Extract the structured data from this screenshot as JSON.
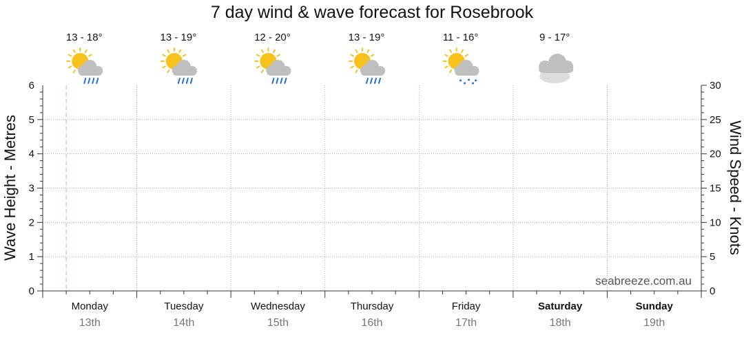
{
  "chart_data": {
    "type": "line",
    "title": "7 day wind & wave forecast for Rosebrook",
    "ylabel": "Wave Height - Metres",
    "y2label": "Wind Speed - Knots",
    "ylim": [
      0,
      6
    ],
    "y2lim": [
      0,
      30
    ],
    "yticks": [
      "0",
      "1",
      "2",
      "3",
      "4",
      "5",
      "6"
    ],
    "y2ticks": [
      "0",
      "5",
      "10",
      "15",
      "20",
      "25",
      "30"
    ],
    "grid": true,
    "current_time_day_fraction": 0.25,
    "days": [
      {
        "day": "Monday",
        "date": "13th",
        "temp": "13 - 18°",
        "icon": "sun-cloud-rain-icon",
        "bold": false
      },
      {
        "day": "Tuesday",
        "date": "14th",
        "temp": "13 - 19°",
        "icon": "sun-cloud-rain-icon",
        "bold": false
      },
      {
        "day": "Wednesday",
        "date": "15th",
        "temp": "12 - 20°",
        "icon": "sun-cloud-rain-icon",
        "bold": false
      },
      {
        "day": "Thursday",
        "date": "16th",
        "temp": "13 - 19°",
        "icon": "sun-cloud-rain-icon",
        "bold": false
      },
      {
        "day": "Friday",
        "date": "17th",
        "temp": "11 - 16°",
        "icon": "sun-cloud-drizzle-icon",
        "bold": false
      },
      {
        "day": "Saturday",
        "date": "18th",
        "temp": "9 - 17°",
        "icon": "cloudy-icon",
        "bold": true
      },
      {
        "day": "Sunday",
        "date": "19th",
        "temp": "",
        "icon": "",
        "bold": true
      }
    ],
    "series": []
  },
  "watermark": "seabreeze.com.au",
  "colors": {
    "grid": "#9a9a9a",
    "axis": "#333333",
    "now_line": "#f0a0a0",
    "sun": "#f7c21b",
    "cloud": "#bfbfbf",
    "rain": "#1e6fd9"
  }
}
